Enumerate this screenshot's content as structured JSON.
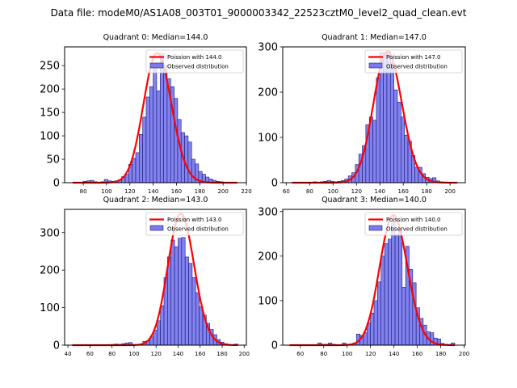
{
  "suptitle": "Data file: modeM0/AS1A08_003T01_9000003342_22523cztM0_level2_quad_clean.evt",
  "colors": {
    "bar_fill": "#7b7bef",
    "bar_edge": "#1a1a6e",
    "line": "#ff0000"
  },
  "chart_data": [
    {
      "type": "bar",
      "title": "Quadrant 0: Median=144.0",
      "xlabel": "",
      "ylabel": "",
      "xlim": [
        64,
        220
      ],
      "ylim": [
        0,
        290
      ],
      "xticks": [
        80,
        100,
        120,
        140,
        160,
        180,
        200,
        220
      ],
      "yticks": [
        0,
        50,
        100,
        150,
        200,
        250
      ],
      "legend": {
        "position": "top-right",
        "entries": [
          "Poission with 144.0",
          "Observed distribution"
        ]
      },
      "poisson_mean": 144.0,
      "poisson_peak": 277,
      "bin_width": 3,
      "bins_start": [
        71,
        74,
        77,
        80,
        83,
        86,
        89,
        92,
        95,
        98,
        101,
        104,
        107,
        110,
        113,
        116,
        119,
        122,
        125,
        128,
        131,
        134,
        137,
        140,
        143,
        146,
        149,
        152,
        155,
        158,
        161,
        164,
        167,
        170,
        173,
        176,
        179,
        182,
        185,
        188,
        191,
        194,
        197,
        200,
        203,
        206,
        209
      ],
      "values": [
        1,
        1,
        1,
        3,
        4,
        5,
        2,
        1,
        2,
        7,
        4,
        3,
        4,
        6,
        13,
        18,
        39,
        52,
        64,
        103,
        140,
        183,
        205,
        250,
        196,
        275,
        250,
        222,
        205,
        180,
        135,
        107,
        100,
        87,
        50,
        40,
        24,
        18,
        12,
        8,
        5,
        3,
        2,
        1,
        1,
        1,
        1
      ]
    },
    {
      "type": "bar",
      "title": "Quadrant 1: Median=147.0",
      "xlabel": "",
      "ylabel": "",
      "xlim": [
        57,
        213
      ],
      "ylim": [
        0,
        300
      ],
      "xticks": [
        60,
        80,
        100,
        120,
        140,
        160,
        180,
        200
      ],
      "yticks": [
        0,
        100,
        200,
        300
      ],
      "legend": {
        "position": "top-right",
        "entries": [
          "Poission with 147.0",
          "Observed distribution"
        ]
      },
      "poisson_mean": 147.0,
      "poisson_peak": 290,
      "bin_width": 3,
      "bins_start": [
        65,
        68,
        71,
        74,
        77,
        80,
        83,
        86,
        89,
        92,
        95,
        98,
        101,
        104,
        107,
        110,
        113,
        116,
        119,
        122,
        125,
        128,
        131,
        134,
        137,
        140,
        143,
        146,
        149,
        152,
        155,
        158,
        161,
        164,
        167,
        170,
        173,
        176,
        179,
        182,
        185,
        188,
        191,
        194,
        197,
        200,
        203
      ],
      "values": [
        1,
        1,
        1,
        1,
        1,
        1,
        2,
        1,
        2,
        3,
        5,
        3,
        2,
        3,
        5,
        8,
        15,
        22,
        40,
        63,
        82,
        128,
        145,
        138,
        232,
        288,
        285,
        290,
        265,
        205,
        178,
        145,
        105,
        92,
        60,
        34,
        34,
        20,
        12,
        9,
        11,
        4,
        2,
        1,
        1,
        1,
        1
      ]
    },
    {
      "type": "bar",
      "title": "Quadrant 2: Median=143.0",
      "xlabel": "",
      "ylabel": "",
      "xlim": [
        37,
        202
      ],
      "ylim": [
        0,
        362
      ],
      "xticks": [
        40,
        60,
        80,
        100,
        120,
        140,
        160,
        180,
        200
      ],
      "yticks": [
        0,
        100,
        200,
        300
      ],
      "legend": {
        "position": "top-right",
        "entries": [
          "Poission with 143.0",
          "Observed distribution"
        ]
      },
      "poisson_mean": 143.0,
      "poisson_peak": 350,
      "bin_width": 3.2,
      "bins_start": [
        44,
        47.2,
        50.4,
        53.6,
        56.8,
        60,
        63.2,
        66.4,
        69.6,
        72.8,
        76,
        79.2,
        82.4,
        85.6,
        88.8,
        92,
        95.2,
        98.4,
        101.6,
        104.8,
        108,
        111.2,
        114.4,
        117.6,
        120.8,
        124,
        127.2,
        130.4,
        133.6,
        136.8,
        140,
        143.2,
        146.4,
        149.6,
        152.8,
        156,
        159.2,
        162.4,
        165.6,
        168.8,
        172,
        175.2,
        178.4,
        181.6,
        184.8,
        188,
        191.2
      ],
      "values": [
        1,
        1,
        1,
        1,
        1,
        1,
        1,
        1,
        1,
        1,
        1,
        2,
        3,
        2,
        4,
        6,
        7,
        2,
        2,
        3,
        10,
        12,
        22,
        40,
        65,
        105,
        180,
        235,
        280,
        262,
        285,
        287,
        235,
        218,
        180,
        140,
        102,
        80,
        58,
        42,
        28,
        15,
        8,
        4,
        2,
        1,
        3
      ]
    },
    {
      "type": "bar",
      "title": "Quadrant 3: Median=140.0",
      "xlabel": "",
      "ylabel": "",
      "xlim": [
        45,
        201
      ],
      "ylim": [
        0,
        305
      ],
      "xticks": [
        60,
        80,
        100,
        120,
        140,
        160,
        180,
        200
      ],
      "yticks": [
        0,
        100,
        200,
        300
      ],
      "legend": {
        "position": "top-right",
        "entries": [
          "Poission with 140.0",
          "Observed distribution"
        ]
      },
      "poisson_mean": 140.0,
      "poisson_peak": 292,
      "bin_width": 3,
      "bins_start": [
        51,
        54,
        57,
        60,
        63,
        66,
        69,
        72,
        75,
        78,
        81,
        84,
        87,
        90,
        93,
        96,
        99,
        102,
        105,
        108,
        111,
        114,
        117,
        120,
        123,
        126,
        129,
        132,
        135,
        138,
        141,
        144,
        147,
        150,
        153,
        156,
        159,
        162,
        165,
        168,
        171,
        174,
        177,
        180,
        183,
        186,
        189
      ],
      "values": [
        1,
        1,
        1,
        1,
        1,
        1,
        1,
        1,
        5,
        2,
        2,
        5,
        2,
        1,
        1,
        5,
        2,
        3,
        5,
        25,
        22,
        28,
        50,
        72,
        100,
        142,
        200,
        228,
        238,
        278,
        248,
        258,
        130,
        222,
        170,
        140,
        84,
        60,
        45,
        30,
        28,
        16,
        14,
        4,
        2,
        1,
        5
      ]
    }
  ]
}
